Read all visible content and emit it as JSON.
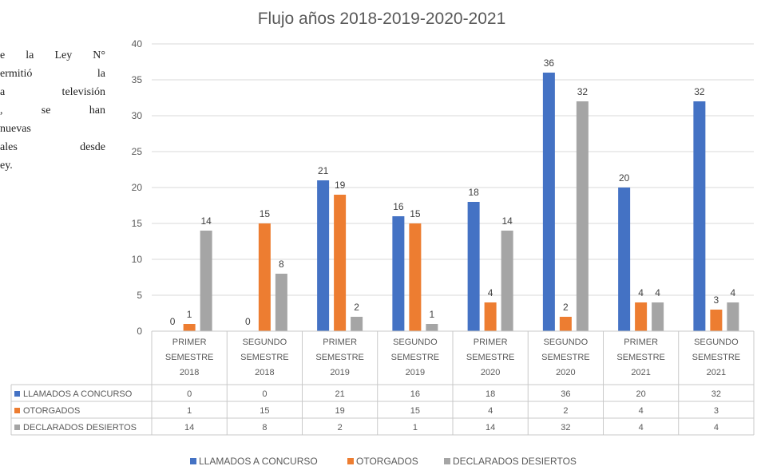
{
  "side_text": [
    "e la Ley N°",
    "ermitió   la",
    "a televisión",
    ",   se   han",
    "nuevas",
    "ales  desde",
    "ey."
  ],
  "chart_data": {
    "type": "bar",
    "title": "Flujo años 2018-2019-2020-2021",
    "categories": [
      [
        "PRIMER",
        "SEMESTRE",
        "2018"
      ],
      [
        "SEGUNDO",
        "SEMESTRE",
        "2018"
      ],
      [
        "PRIMER",
        "SEMESTRE",
        "2019"
      ],
      [
        "SEGUNDO",
        "SEMESTRE",
        "2019"
      ],
      [
        "PRIMER",
        "SEMESTRE",
        "2020"
      ],
      [
        "SEGUNDO",
        "SEMESTRE",
        "2020"
      ],
      [
        "PRIMER",
        "SEMESTRE",
        "2021"
      ],
      [
        "SEGUNDO",
        "SEMESTRE",
        "2021"
      ]
    ],
    "series": [
      {
        "name": "LLAMADOS A CONCURSO",
        "color": "#4472c4",
        "values": [
          0,
          0,
          21,
          16,
          18,
          36,
          20,
          32
        ]
      },
      {
        "name": "OTORGADOS",
        "color": "#ed7d31",
        "values": [
          1,
          15,
          19,
          15,
          4,
          2,
          4,
          3
        ]
      },
      {
        "name": "DECLARADOS DESIERTOS",
        "color": "#a5a5a5",
        "values": [
          14,
          8,
          2,
          1,
          14,
          32,
          4,
          4
        ]
      }
    ],
    "ylim": [
      0,
      40
    ],
    "yticks": [
      0,
      5,
      10,
      15,
      20,
      25,
      30,
      35,
      40
    ],
    "grid": true,
    "data_table": true,
    "legend": "bottom"
  }
}
